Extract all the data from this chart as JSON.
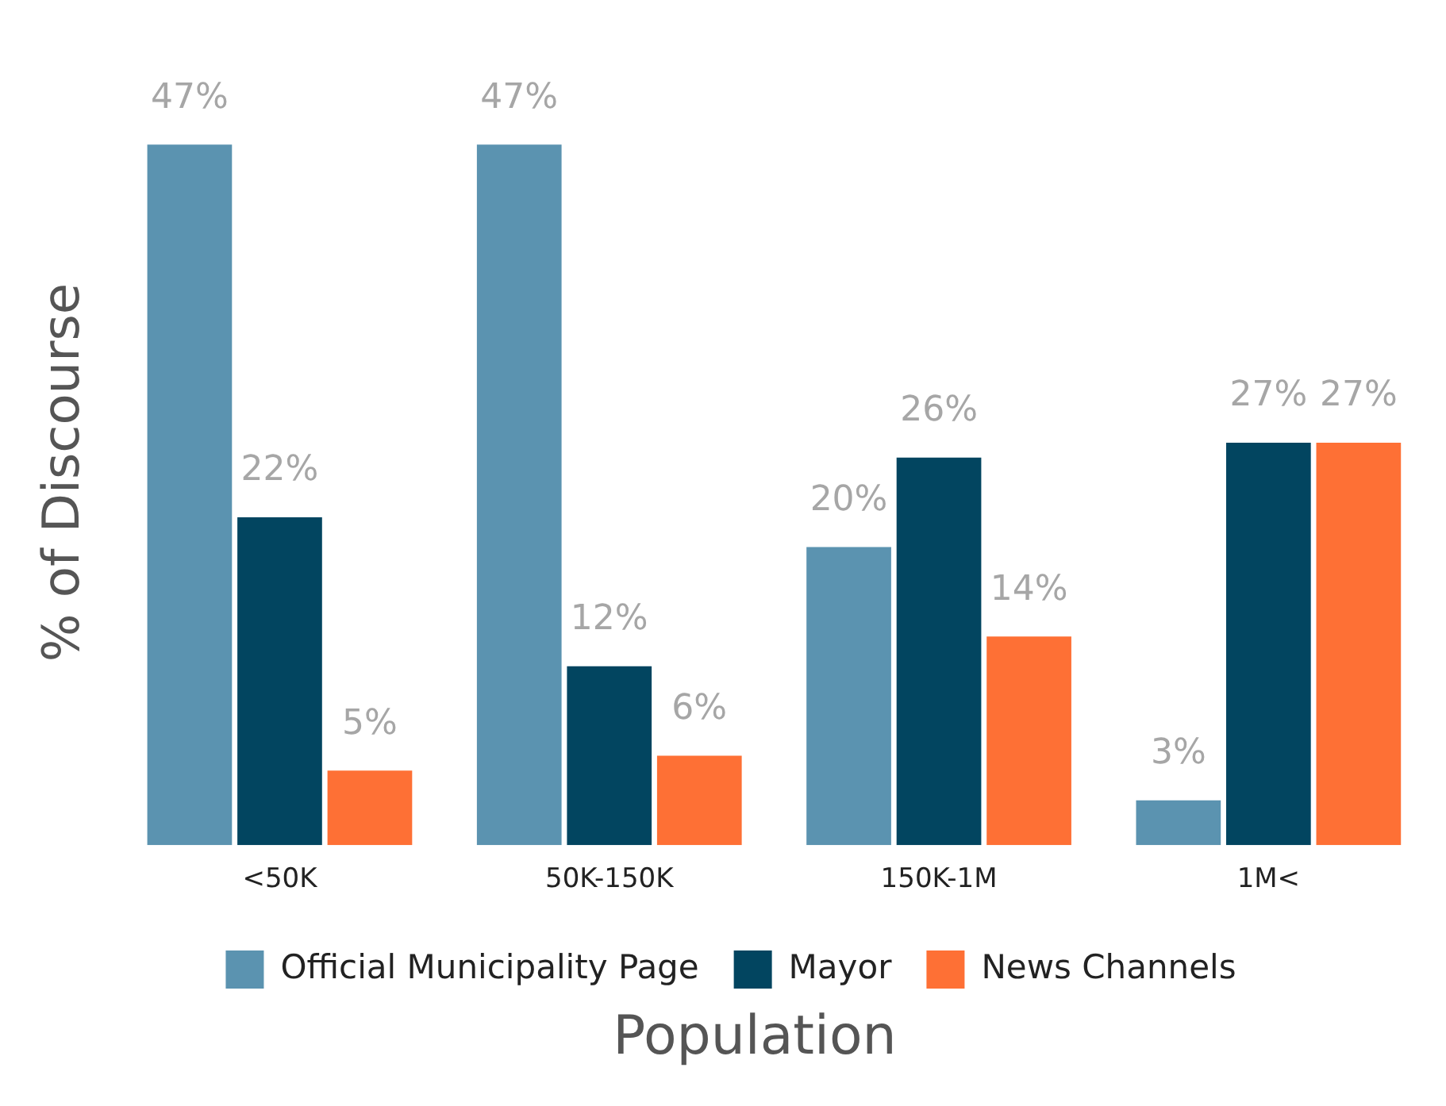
{
  "chart_data": {
    "type": "bar",
    "xlabel": "Population",
    "ylabel": "% of Discourse",
    "categories": [
      "<50K",
      "50K-150K",
      "150K-1M",
      "1M<"
    ],
    "series": [
      {
        "name": "Official Municipality Page",
        "color": "#5b93b0",
        "values": [
          47,
          47,
          20,
          3
        ],
        "value_labels": [
          "47%",
          "47%",
          "20%",
          "3%"
        ]
      },
      {
        "name": "Mayor",
        "color": "#024560",
        "values": [
          22,
          12,
          26,
          27
        ],
        "value_labels": [
          "22%",
          "12%",
          "26%",
          "27%"
        ]
      },
      {
        "name": "News Channels",
        "color": "#fe7035",
        "values": [
          5,
          6,
          14,
          27
        ],
        "value_labels": [
          "5%",
          "6%",
          "14%",
          "27%"
        ]
      }
    ],
    "legend": "bottom",
    "grid": false
  }
}
